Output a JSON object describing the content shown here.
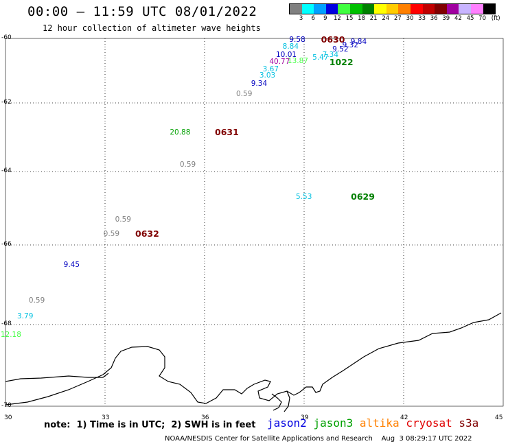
{
  "header": {
    "title": "00:00 – 11:59 UTC 08/01/2022",
    "subtitle": "12 hour collection of altimeter wave heights"
  },
  "legend": {
    "unit": "(ft)",
    "swatches": [
      {
        "color": "#808080",
        "label": "3"
      },
      {
        "color": "#00ffff",
        "label": "6"
      },
      {
        "color": "#00a0ff",
        "label": "9"
      },
      {
        "color": "#0000e0",
        "label": "12"
      },
      {
        "color": "#40ff40",
        "label": "15"
      },
      {
        "color": "#00c000",
        "label": "18"
      },
      {
        "color": "#008000",
        "label": "21"
      },
      {
        "color": "#ffff00",
        "label": "24"
      },
      {
        "color": "#ffcc00",
        "label": "27"
      },
      {
        "color": "#ff8000",
        "label": "30"
      },
      {
        "color": "#ff0000",
        "label": "33"
      },
      {
        "color": "#c00000",
        "label": "36"
      },
      {
        "color": "#800000",
        "label": "39"
      },
      {
        "color": "#a000a0",
        "label": "42"
      },
      {
        "color": "#c8b4ff",
        "label": "45"
      },
      {
        "color": "#ff80ff",
        "label": "70"
      },
      {
        "color": "#000000",
        "label": ""
      }
    ]
  },
  "axes": {
    "lon_ticks": [
      "30",
      "33",
      "36",
      "39",
      "42",
      "45"
    ],
    "lat_ticks": [
      "-60",
      "-62",
      "-64",
      "-66",
      "-68",
      "-70"
    ]
  },
  "observations": [
    {
      "value": "9.58",
      "color": "#0000c0",
      "lon": 38.8,
      "lat": -60.05
    },
    {
      "value": "8.84",
      "color": "#00c0e0",
      "lon": 38.6,
      "lat": -60.25
    },
    {
      "value": "10.01",
      "color": "#0000c0",
      "lon": 38.4,
      "lat": -60.5
    },
    {
      "value": "40.77",
      "color": "#a000a0",
      "lon": 38.2,
      "lat": -60.72
    },
    {
      "value": "3.67",
      "color": "#00c0e0",
      "lon": 38.0,
      "lat": -60.95
    },
    {
      "value": "3.03",
      "color": "#00c0e0",
      "lon": 37.9,
      "lat": -61.15
    },
    {
      "value": "9.34",
      "color": "#0000c0",
      "lon": 37.65,
      "lat": -61.4
    },
    {
      "value": "0.59",
      "color": "#808080",
      "lon": 37.2,
      "lat": -61.72
    },
    {
      "value": "9.84",
      "color": "#0000c0",
      "lon": 40.65,
      "lat": -60.1
    },
    {
      "value": "9.32",
      "color": "#0000c0",
      "lon": 40.4,
      "lat": -60.22
    },
    {
      "value": "9.52",
      "color": "#0000c0",
      "lon": 40.1,
      "lat": -60.35
    },
    {
      "value": "7.34",
      "color": "#00c0e0",
      "lon": 39.8,
      "lat": -60.5
    },
    {
      "value": "5.47",
      "color": "#00c0e0",
      "lon": 39.5,
      "lat": -60.6
    },
    {
      "value": "13.87",
      "color": "#40ff40",
      "lon": 38.75,
      "lat": -60.7
    },
    {
      "value": "20.88",
      "color": "#00a000",
      "lon": 35.2,
      "lat": -62.85
    },
    {
      "value": "0.59",
      "color": "#808080",
      "lon": 35.5,
      "lat": -63.8
    },
    {
      "value": "5.53",
      "color": "#00c0e0",
      "lon": 39.0,
      "lat": -64.7
    },
    {
      "value": "0.59",
      "color": "#808080",
      "lon": 33.55,
      "lat": -65.3
    },
    {
      "value": "0.59",
      "color": "#808080",
      "lon": 33.2,
      "lat": -65.7
    },
    {
      "value": "9.45",
      "color": "#0000c0",
      "lon": 32.0,
      "lat": -66.5
    },
    {
      "value": "0.59",
      "color": "#808080",
      "lon": 30.95,
      "lat": -67.4
    },
    {
      "value": "3.79",
      "color": "#00c0e0",
      "lon": 30.6,
      "lat": -67.8
    },
    {
      "value": "12.18",
      "color": "#40ff40",
      "lon": 30.1,
      "lat": -68.25
    }
  ],
  "passes": [
    {
      "id": "0630",
      "color": "#800000",
      "lon": 39.8,
      "lat": -60.05
    },
    {
      "id": "1022",
      "color": "#008000",
      "lon": 40.05,
      "lat": -60.75
    },
    {
      "id": "0631",
      "color": "#800000",
      "lon": 36.6,
      "lat": -62.85
    },
    {
      "id": "0629",
      "color": "#008000",
      "lon": 40.7,
      "lat": -64.7
    },
    {
      "id": "0632",
      "color": "#800000",
      "lon": 34.2,
      "lat": -65.7
    }
  ],
  "note": "note:  1) Time is in UTC;  2) SWH is in feet",
  "satellites": [
    {
      "name": "jason2",
      "color": "#0000e0"
    },
    {
      "name": "jason3",
      "color": "#00a000"
    },
    {
      "name": "altika",
      "color": "#ff8000"
    },
    {
      "name": "cryosat",
      "color": "#e00000"
    },
    {
      "name": "s3a",
      "color": "#800000"
    }
  ],
  "footer": "NOAA/NESDIS Center for Satellite Applications and Research    Aug  3 08:29:17 UTC 2022"
}
